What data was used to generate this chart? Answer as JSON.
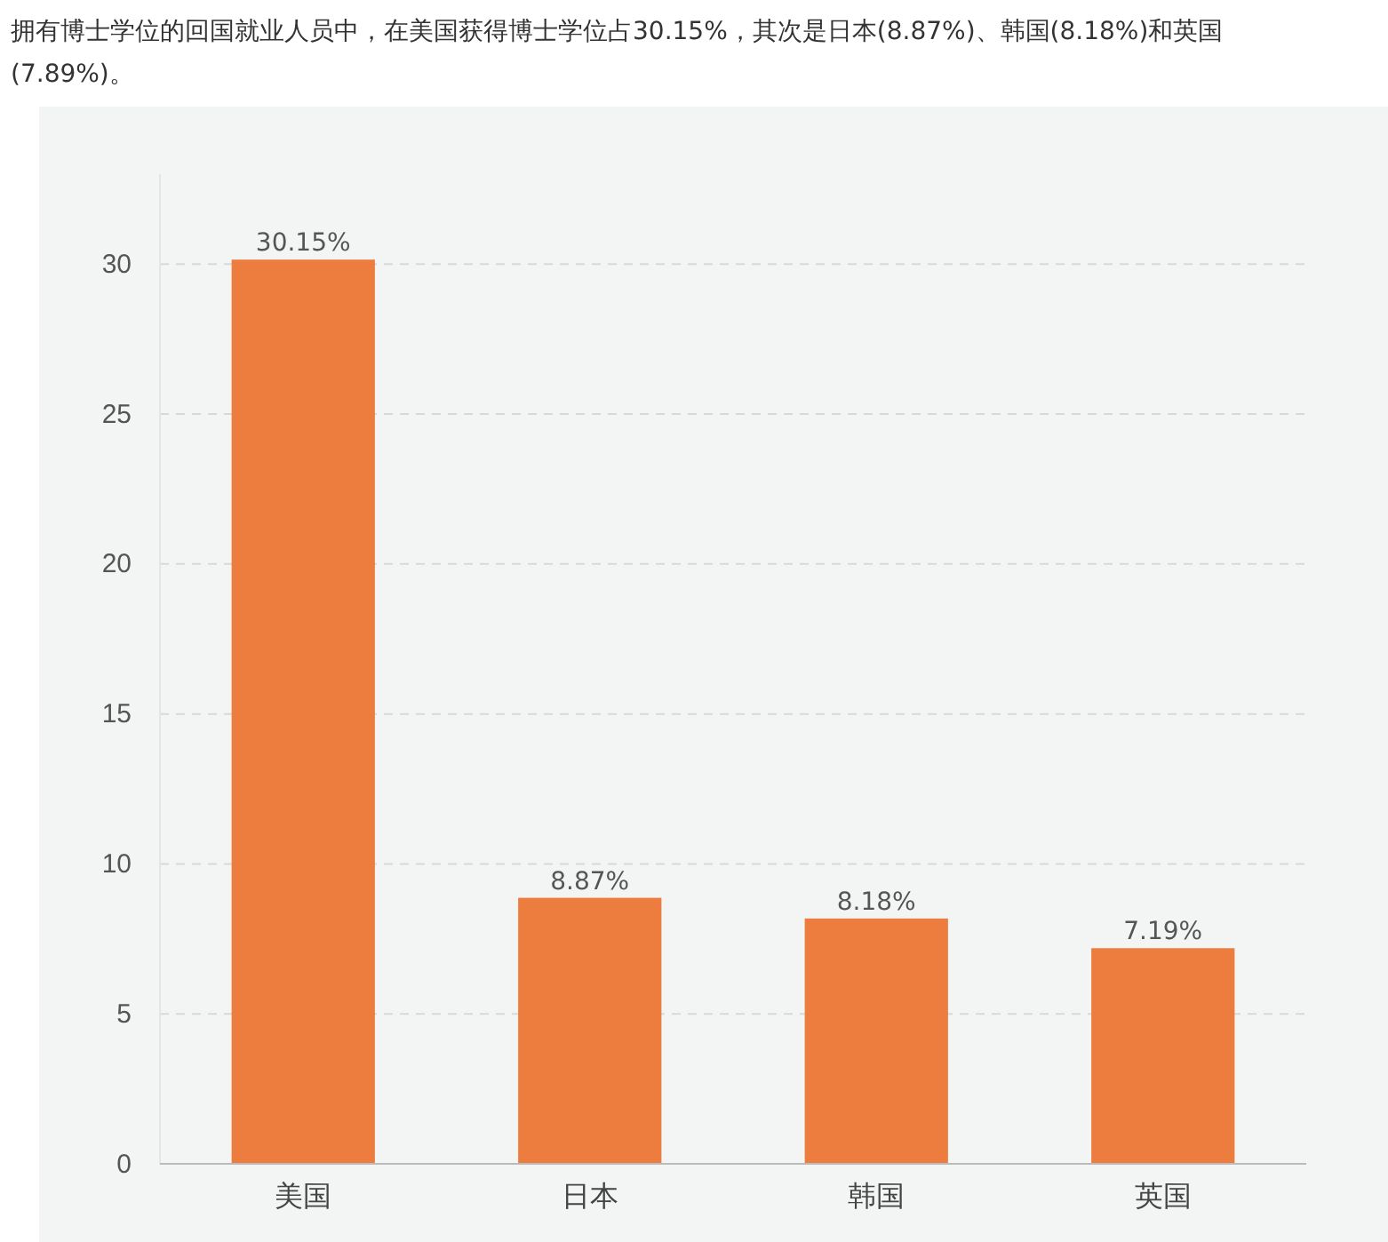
{
  "chart_data": {
    "type": "bar",
    "title": "拥有博士学位的回国就业人员中，在美国获得博士学位占30.15%，其次是日本(8.87%)、韩国(8.18%)和英国(7.89%)。",
    "categories": [
      "美国",
      "日本",
      "韩国",
      "英国"
    ],
    "values": [
      30.15,
      8.87,
      8.18,
      7.19
    ],
    "value_labels": [
      "30.15%",
      "8.87%",
      "8.18%",
      "7.19%"
    ],
    "color": "#ed7d3f",
    "ylim": [
      0,
      33
    ],
    "yticks": [
      0,
      5,
      10,
      15,
      20,
      25,
      30
    ],
    "grid": "y"
  }
}
